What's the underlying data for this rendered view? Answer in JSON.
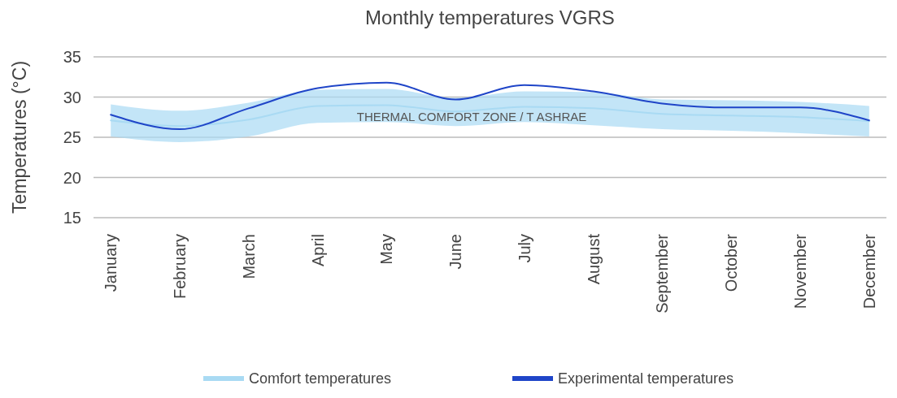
{
  "chart_data": {
    "type": "line",
    "title": "Monthly temperatures VGRS",
    "ylabel": "Temperatures (°C)",
    "categories": [
      "January",
      "February",
      "March",
      "April",
      "May",
      "June",
      "July",
      "August",
      "September",
      "October",
      "November",
      "December"
    ],
    "series": [
      {
        "name": "Comfort temperatures",
        "color": "#a9daf3",
        "values": [
          27.1,
          26.4,
          27.2,
          28.9,
          29.0,
          28.2,
          28.8,
          28.6,
          27.9,
          27.7,
          27.5,
          27.0
        ],
        "lower": [
          25.1,
          24.4,
          25.1,
          26.8,
          26.9,
          26.4,
          26.9,
          26.5,
          26.0,
          25.8,
          25.5,
          25.1
        ],
        "upper": [
          29.1,
          28.3,
          29.3,
          30.9,
          31.0,
          29.9,
          30.7,
          30.6,
          29.7,
          29.6,
          29.4,
          28.9
        ]
      },
      {
        "name": "Experimental temperatures",
        "color": "#1f45c8",
        "values": [
          27.8,
          26.0,
          28.6,
          31.1,
          31.8,
          29.7,
          31.5,
          30.7,
          29.2,
          28.7,
          28.7,
          27.1
        ]
      }
    ],
    "ylim": [
      15,
      35
    ],
    "yticks": [
      15,
      20,
      25,
      30,
      35
    ],
    "grid": "y",
    "legend": "bottom",
    "marker": "none",
    "line_style": "solid",
    "annotations": [
      "THERMAL COMFORT ZONE / T ASHRAE"
    ]
  }
}
